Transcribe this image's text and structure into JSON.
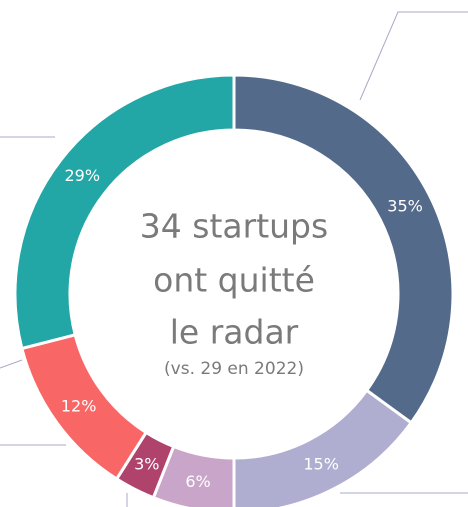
{
  "chart_data": {
    "type": "donut",
    "center_text": [
      "34 startups",
      "ont quitté",
      "le radar"
    ],
    "center_subtext": "(vs. 29 en 2022)",
    "values": [
      35,
      15,
      6,
      3,
      12,
      29
    ],
    "value_labels": [
      "35%",
      "15%",
      "6%",
      "3%",
      "12%",
      "29%"
    ],
    "colors": [
      "#546a8a",
      "#b0aed0",
      "#c9a5c9",
      "#b0436b",
      "#f96666",
      "#22a6a6"
    ]
  }
}
